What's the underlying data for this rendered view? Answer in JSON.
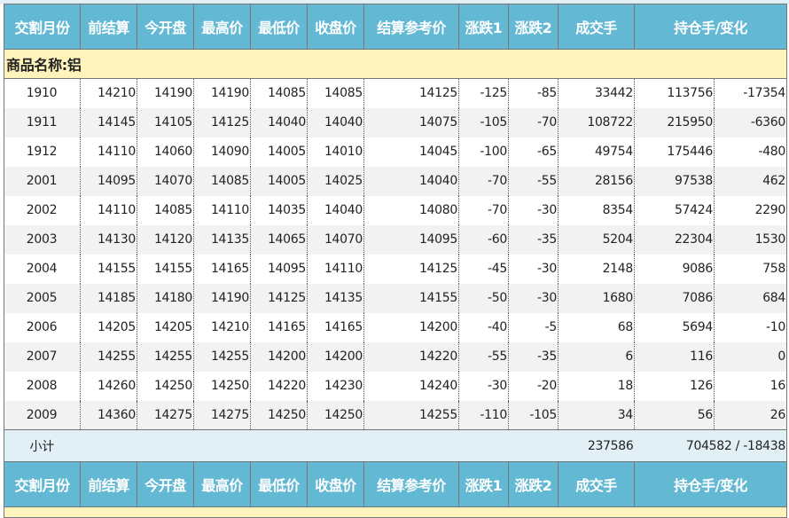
{
  "headers": [
    "交割月份",
    "前结算",
    "今开盘",
    "最高价",
    "最低价",
    "收盘价",
    "结算参考价",
    "涨跌1",
    "涨跌2",
    "成交手",
    "持仓手/变化"
  ],
  "product_label": "商品名称:铝",
  "rows": [
    [
      "1910",
      "14210",
      "14190",
      "14190",
      "14085",
      "14085",
      "14125",
      "-125",
      "-85",
      "33442",
      "113756",
      "-17354"
    ],
    [
      "1911",
      "14145",
      "14105",
      "14125",
      "14040",
      "14040",
      "14075",
      "-105",
      "-70",
      "108722",
      "215950",
      "-6360"
    ],
    [
      "1912",
      "14110",
      "14060",
      "14090",
      "14005",
      "14010",
      "14045",
      "-100",
      "-65",
      "49754",
      "175446",
      "-480"
    ],
    [
      "2001",
      "14095",
      "14070",
      "14085",
      "14005",
      "14025",
      "14040",
      "-70",
      "-55",
      "28156",
      "97538",
      "462"
    ],
    [
      "2002",
      "14110",
      "14085",
      "14110",
      "14035",
      "14040",
      "14080",
      "-70",
      "-30",
      "8354",
      "57424",
      "2290"
    ],
    [
      "2003",
      "14130",
      "14120",
      "14135",
      "14065",
      "14070",
      "14095",
      "-60",
      "-35",
      "5204",
      "22304",
      "1530"
    ],
    [
      "2004",
      "14155",
      "14155",
      "14165",
      "14095",
      "14110",
      "14125",
      "-45",
      "-30",
      "2148",
      "9086",
      "758"
    ],
    [
      "2005",
      "14185",
      "14180",
      "14190",
      "14125",
      "14135",
      "14155",
      "-50",
      "-30",
      "1680",
      "7086",
      "684"
    ],
    [
      "2006",
      "14205",
      "14205",
      "14210",
      "14165",
      "14165",
      "14200",
      "-40",
      "-5",
      "68",
      "5694",
      "-10"
    ],
    [
      "2007",
      "14255",
      "14255",
      "14255",
      "14200",
      "14200",
      "14220",
      "-55",
      "-35",
      "6",
      "116",
      "0"
    ],
    [
      "2008",
      "14260",
      "14250",
      "14250",
      "14220",
      "14230",
      "14240",
      "-30",
      "-20",
      "18",
      "126",
      "16"
    ],
    [
      "2009",
      "14360",
      "14275",
      "14275",
      "14250",
      "14250",
      "14255",
      "-110",
      "-105",
      "34",
      "56",
      "26"
    ]
  ],
  "subtotal": {
    "label": "小计",
    "volume": "237586",
    "open_interest": "704582 / -18438"
  },
  "colors": {
    "header_bg": "#63b8d4",
    "product_bg": "#fff4bb",
    "subtotal_bg": "#e1f0f7",
    "alt_row": "#f2f2f2"
  }
}
